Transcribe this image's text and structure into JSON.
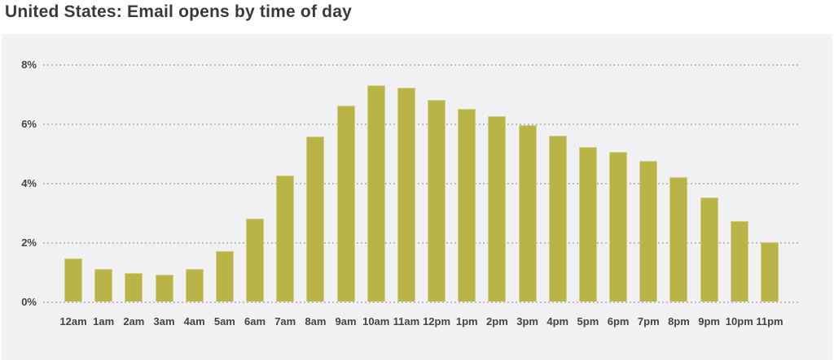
{
  "page": {
    "title": "United States: Email opens by time of day"
  },
  "chart_data": {
    "type": "bar",
    "title": "United States: Email opens by time of day",
    "categories": [
      "12am",
      "1am",
      "2am",
      "3am",
      "4am",
      "5am",
      "6am",
      "7am",
      "8am",
      "9am",
      "10am",
      "11am",
      "12pm",
      "1pm",
      "2pm",
      "3pm",
      "4pm",
      "5pm",
      "6pm",
      "7pm",
      "8pm",
      "9pm",
      "10pm",
      "11pm"
    ],
    "values": [
      1.45,
      1.1,
      0.95,
      0.9,
      1.1,
      1.7,
      2.8,
      4.25,
      5.55,
      6.6,
      7.3,
      7.2,
      6.8,
      6.5,
      6.25,
      5.95,
      5.6,
      5.2,
      5.05,
      4.75,
      4.2,
      3.5,
      2.7,
      2.0
    ],
    "unit": "%",
    "xlabel": "",
    "ylabel": "",
    "ylim": [
      0,
      8
    ],
    "yticks": [
      {
        "value": 0,
        "label": "0%"
      },
      {
        "value": 2,
        "label": "2%"
      },
      {
        "value": 4,
        "label": "4%"
      },
      {
        "value": 6,
        "label": "6%"
      },
      {
        "value": 8,
        "label": "8%"
      }
    ],
    "grid": "horizontal-dotted",
    "legend": "none",
    "colors": {
      "bar_fill": "#b9b446",
      "bar_edge": "#d2cf8d",
      "panel_background": "#f1f1f4",
      "page_background": "#ffffff",
      "gridline": "#bdbdbf",
      "axis_text": "#454548",
      "title_text": "#3a3a3c"
    }
  }
}
